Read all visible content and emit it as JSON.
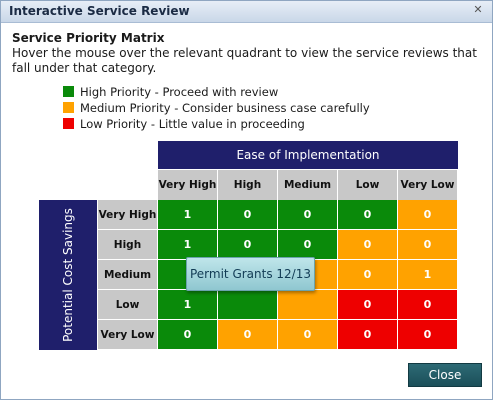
{
  "window": {
    "title": "Interactive Service Review",
    "close_glyph": "✕"
  },
  "content": {
    "heading": "Service Priority Matrix",
    "description": "Hover the mouse over the relevant quadrant to view the service reviews that fall under that category."
  },
  "legend": [
    {
      "label": "High Priority - Proceed with review",
      "color": "#0a8a0a"
    },
    {
      "label": "Medium Priority - Consider business case carefully",
      "color": "#ffa200"
    },
    {
      "label": "Low Priority - Little value in proceeding",
      "color": "#ee0000"
    }
  ],
  "matrix": {
    "x_title": "Ease of Implementation",
    "y_title": "Potential Cost Savings",
    "columns": [
      "Very High",
      "High",
      "Medium",
      "Low",
      "Very Low"
    ],
    "rows": [
      "Very High",
      "High",
      "Medium",
      "Low",
      "Very Low"
    ],
    "cells": [
      [
        {
          "value": "1",
          "priority": "high"
        },
        {
          "value": "0",
          "priority": "high"
        },
        {
          "value": "0",
          "priority": "high"
        },
        {
          "value": "0",
          "priority": "high"
        },
        {
          "value": "0",
          "priority": "medium"
        }
      ],
      [
        {
          "value": "1",
          "priority": "high"
        },
        {
          "value": "0",
          "priority": "high"
        },
        {
          "value": "0",
          "priority": "high"
        },
        {
          "value": "0",
          "priority": "medium"
        },
        {
          "value": "0",
          "priority": "medium"
        }
      ],
      [
        {
          "value": "",
          "priority": "high"
        },
        {
          "value": "",
          "priority": "high"
        },
        {
          "value": "",
          "priority": "medium"
        },
        {
          "value": "0",
          "priority": "medium"
        },
        {
          "value": "1",
          "priority": "medium"
        }
      ],
      [
        {
          "value": "1",
          "priority": "high"
        },
        {
          "value": "",
          "priority": "high"
        },
        {
          "value": "",
          "priority": "medium"
        },
        {
          "value": "0",
          "priority": "low"
        },
        {
          "value": "0",
          "priority": "low"
        }
      ],
      [
        {
          "value": "0",
          "priority": "high"
        },
        {
          "value": "0",
          "priority": "medium"
        },
        {
          "value": "0",
          "priority": "medium"
        },
        {
          "value": "0",
          "priority": "low"
        },
        {
          "value": "0",
          "priority": "low"
        }
      ]
    ]
  },
  "tooltip": {
    "text": "Permit Grants 12/13"
  },
  "footer": {
    "close_label": "Close"
  }
}
